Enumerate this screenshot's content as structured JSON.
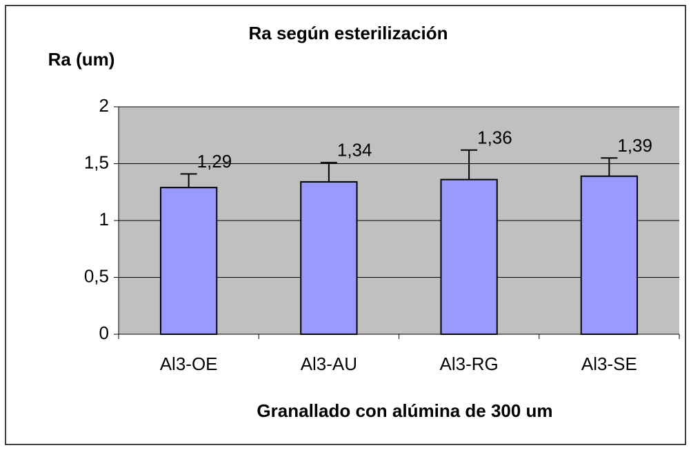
{
  "chart_data": {
    "type": "bar",
    "title": "Ra según esterilización",
    "y_label": "Ra (um)",
    "x_label": "Granallado con alúmina de 300 um",
    "categories": [
      "Al3-OE",
      "Al3-AU",
      "Al3-RG",
      "Al3-SE"
    ],
    "values": [
      1.29,
      1.34,
      1.36,
      1.39
    ],
    "value_labels": [
      "1,29",
      "1,34",
      "1,36",
      "1,39"
    ],
    "errors": [
      0.12,
      0.17,
      0.26,
      0.16
    ],
    "color": "#9999ff",
    "ylim": [
      0,
      2
    ],
    "yticks": [
      0,
      {
        "value": 0.5,
        "label": "0,5"
      },
      1,
      {
        "value": 1.5,
        "label": "1,5"
      },
      2
    ],
    "grid": true
  }
}
